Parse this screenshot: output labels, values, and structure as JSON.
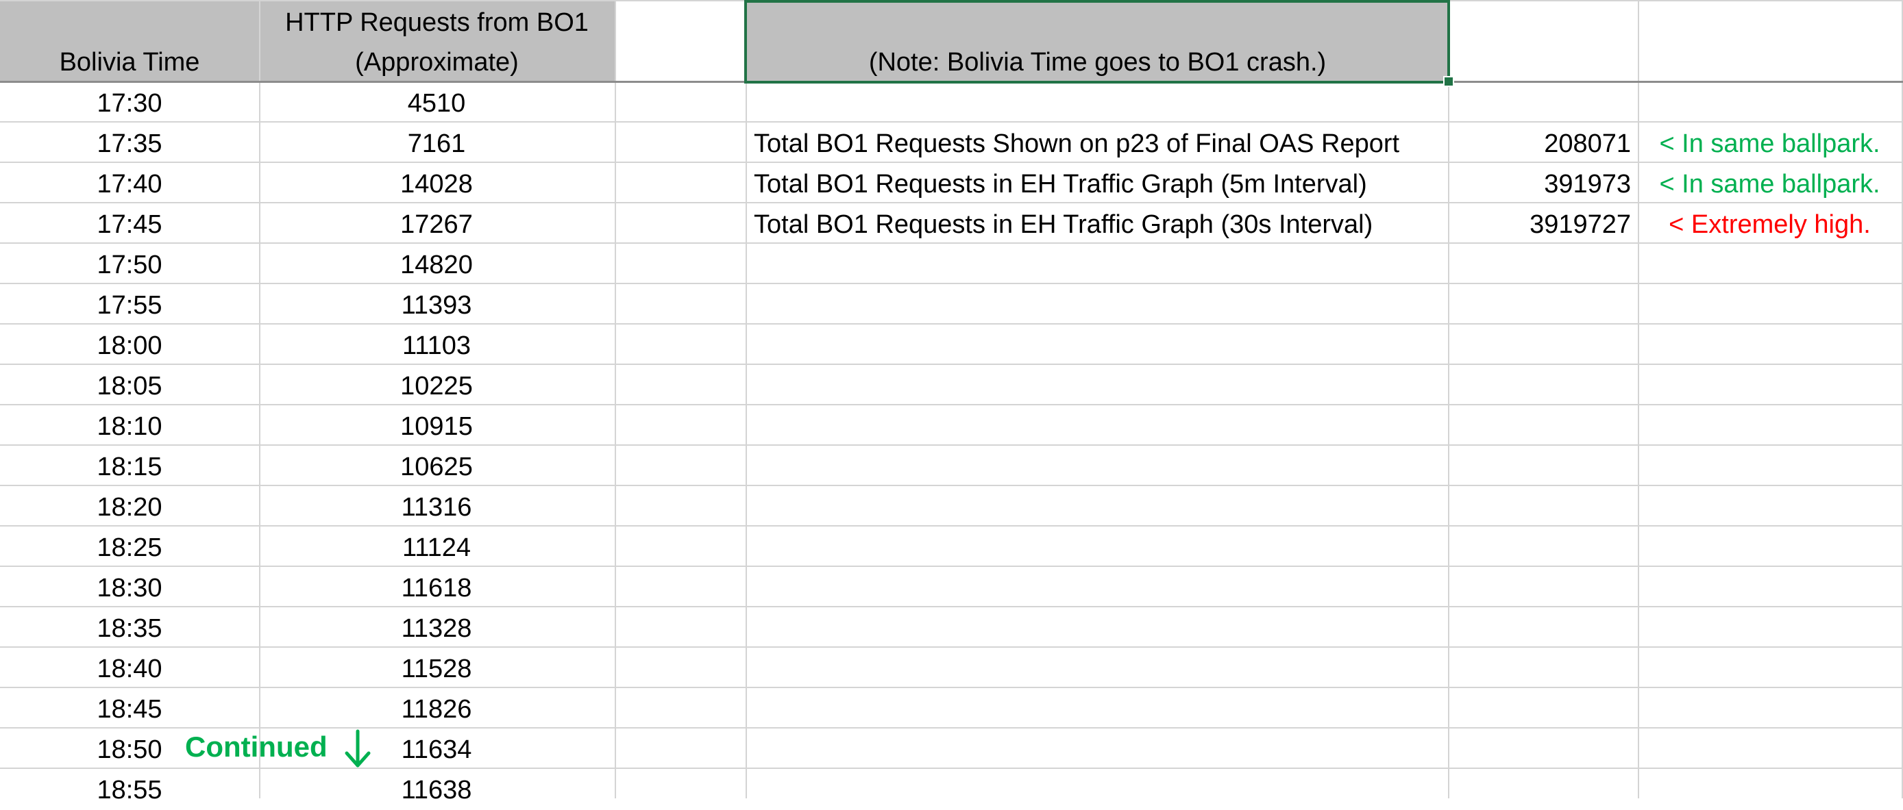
{
  "headers": {
    "time": "Bolivia Time",
    "requests_line1": "HTTP Requests from BO1",
    "requests_line2": "(Approximate)",
    "note": "(Note: Bolivia Time goes to BO1 crash.)"
  },
  "rows": [
    {
      "time": "17:30",
      "requests": "4510"
    },
    {
      "time": "17:35",
      "requests": "7161"
    },
    {
      "time": "17:40",
      "requests": "14028"
    },
    {
      "time": "17:45",
      "requests": "17267"
    },
    {
      "time": "17:50",
      "requests": "14820"
    },
    {
      "time": "17:55",
      "requests": "11393"
    },
    {
      "time": "18:00",
      "requests": "11103"
    },
    {
      "time": "18:05",
      "requests": "10225"
    },
    {
      "time": "18:10",
      "requests": "10915"
    },
    {
      "time": "18:15",
      "requests": "10625"
    },
    {
      "time": "18:20",
      "requests": "11316"
    },
    {
      "time": "18:25",
      "requests": "11124"
    },
    {
      "time": "18:30",
      "requests": "11618"
    },
    {
      "time": "18:35",
      "requests": "11328"
    },
    {
      "time": "18:40",
      "requests": "11528"
    },
    {
      "time": "18:45",
      "requests": "11826"
    },
    {
      "time": "18:50",
      "requests": "11634"
    },
    {
      "time": "18:55",
      "requests": "11638"
    }
  ],
  "continued_label": "Continued",
  "continued_icon": "down-arrow-icon",
  "summary": [
    {
      "label": "Total BO1 Requests Shown on p23 of Final OAS Report",
      "value": "208071",
      "comment": "< In same ballpark.",
      "tone": "good"
    },
    {
      "label": "Total BO1 Requests in EH Traffic Graph (5m Interval)",
      "value": "391973",
      "comment": "< In same ballpark.",
      "tone": "good"
    },
    {
      "label": "Total BO1 Requests in EH Traffic Graph (30s Interval)",
      "value": "3919727",
      "comment": "< Extremely high.",
      "tone": "bad"
    }
  ],
  "colors": {
    "header_fill": "#bfbfbf",
    "gridline": "#d4d4d4",
    "selection": "#217346",
    "good": "#00b050",
    "bad": "#ff0000"
  }
}
